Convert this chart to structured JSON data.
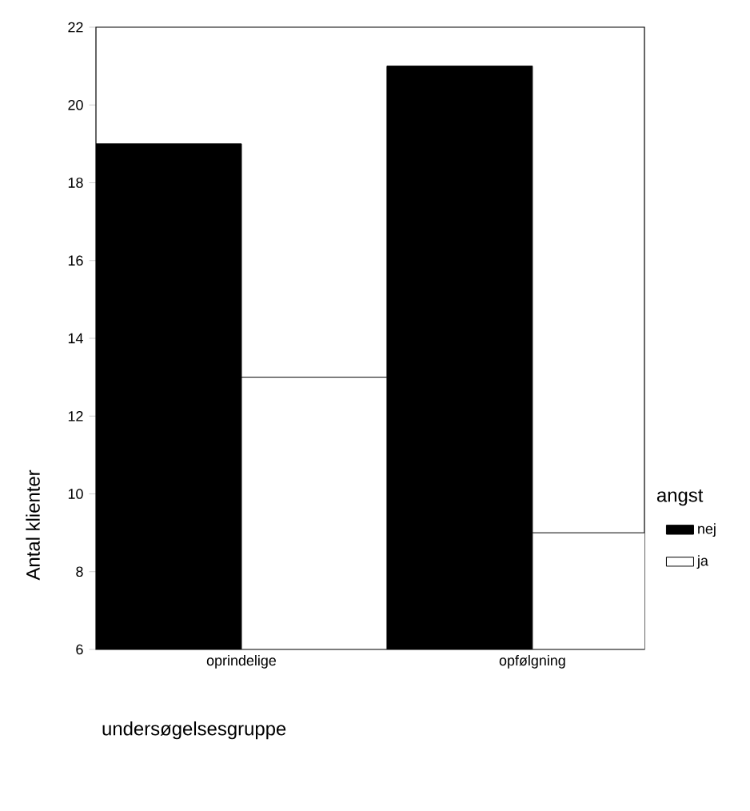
{
  "chart_data": {
    "type": "bar",
    "categories": [
      "oprindelige",
      "opfølgning"
    ],
    "series": [
      {
        "name": "nej",
        "color": "#000000",
        "values": [
          19,
          21
        ]
      },
      {
        "name": "ja",
        "color": "#ffffff",
        "values": [
          13,
          9
        ]
      }
    ],
    "xlabel": "undersøgelsesgruppe",
    "ylabel": "Antal klienter",
    "legend_title": "angst",
    "ylim": [
      6,
      22
    ],
    "yticks": [
      6,
      8,
      10,
      12,
      14,
      16,
      18,
      20,
      22
    ],
    "legend": "right"
  }
}
